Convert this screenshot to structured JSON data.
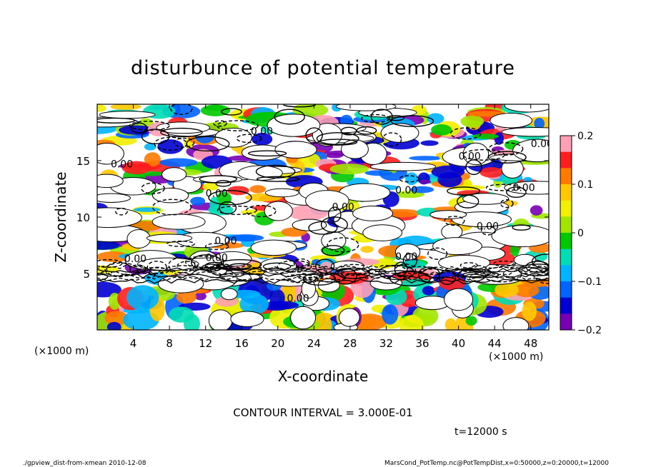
{
  "chart_data": {
    "type": "heatmap",
    "title": "disturbunce of potential temperature",
    "xlabel": "X-coordinate",
    "ylabel": "Z-coordinate",
    "x_unit_left": "(×1000 m)",
    "x_unit_right": "(×1000 m)",
    "xlim": [
      0,
      50
    ],
    "ylim": [
      0,
      20
    ],
    "x_ticks": [
      4,
      8,
      12,
      16,
      20,
      24,
      28,
      32,
      36,
      40,
      44,
      48
    ],
    "y_ticks": [
      5,
      10,
      15
    ],
    "colorbar": {
      "range": [
        -0.2,
        0.2
      ],
      "tick_labels": [
        "0.2",
        "0.1",
        "0",
        "−0.1",
        "−0.2"
      ],
      "colors": [
        "#ffa0b4",
        "#ff1e1e",
        "#ff7a00",
        "#ffc800",
        "#f0f000",
        "#a0e600",
        "#00c800",
        "#00dcb4",
        "#00b4ff",
        "#0064ff",
        "#0000d2",
        "#7800b4"
      ]
    },
    "contour_labels": [
      "0.00",
      "0.00",
      "0.00",
      "0.00",
      "0.00",
      "0.00",
      "0.00",
      "0.00",
      "0.00",
      "0.00",
      "0.00",
      "0.00",
      "0.00",
      "0.00"
    ],
    "contour_interval": "CONTOUR INTERVAL = 3.000E-01",
    "time_label": "t=12000  s",
    "footer_left": "./gpview_dist-from-xmean   2010-12-08",
    "footer_right": "MarsCond_PotTemp.nc@PotTempDist,x=0:50000,z=0:20000,t=12000"
  }
}
